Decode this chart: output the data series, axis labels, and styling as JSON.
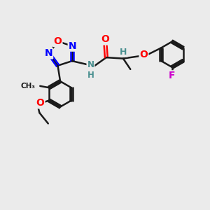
{
  "bg_color": "#ebebeb",
  "bond_color": "#1a1a1a",
  "blue": "#0000ff",
  "red": "#ff0000",
  "teal": "#4a9090",
  "magenta": "#cc00cc",
  "bond_width": 1.8,
  "figsize": [
    3.0,
    3.0
  ],
  "dpi": 100,
  "xlim": [
    0,
    10
  ],
  "ylim": [
    0,
    10
  ]
}
